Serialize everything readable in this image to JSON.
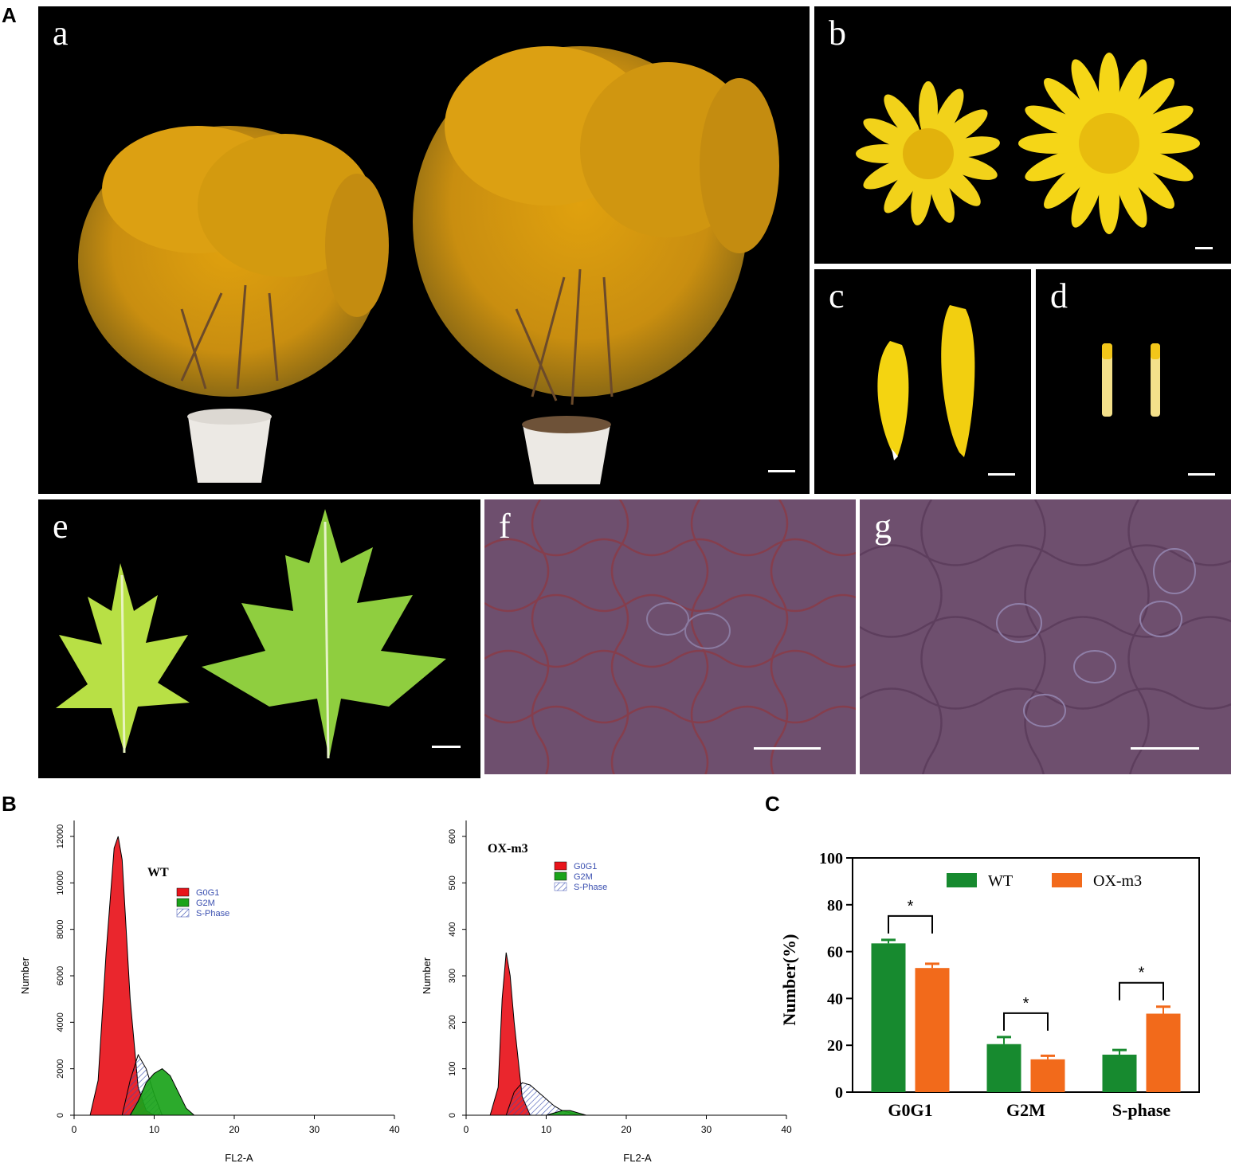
{
  "panel_letters": {
    "A": "A",
    "B": "B",
    "C": "C"
  },
  "photos": {
    "a": {
      "label": "a"
    },
    "b": {
      "label": "b"
    },
    "c": {
      "label": "c"
    },
    "d": {
      "label": "d"
    },
    "e": {
      "label": "e"
    },
    "f": {
      "label": "f"
    },
    "g": {
      "label": "g"
    }
  },
  "flow_wt": {
    "name": "WT",
    "ylabel": "Number",
    "xlabel": "FL2-A",
    "yticks": [
      0,
      2000,
      4000,
      6000,
      8000,
      10000,
      12000
    ],
    "xticks": [
      0,
      10,
      20,
      30,
      40
    ],
    "legend": [
      "G0G1",
      "G2M",
      "S-Phase"
    ]
  },
  "flow_ox": {
    "name": "OX-m3",
    "ylabel": "Number",
    "xlabel": "FL2-A",
    "yticks": [
      0,
      100,
      200,
      300,
      400,
      500,
      600
    ],
    "xticks": [
      0,
      10,
      20,
      30,
      40
    ],
    "legend": [
      "G0G1",
      "G2M",
      "S-Phase"
    ]
  },
  "colors": {
    "g0g1": "#e8141b",
    "g2m": "#1aa31a",
    "sphase": "#3a4fb0",
    "wt_bar": "#178a2f",
    "ox_bar": "#f26a1b"
  },
  "chart_data": [
    {
      "type": "area",
      "series": [
        {
          "name": "G0G1",
          "x": [
            2,
            3,
            4,
            5,
            5.5,
            6,
            7,
            8,
            9,
            10
          ],
          "y": [
            0,
            1500,
            7000,
            11500,
            12000,
            11000,
            5000,
            1200,
            200,
            0
          ]
        },
        {
          "name": "S-Phase",
          "x": [
            6,
            7,
            8,
            9,
            10,
            11
          ],
          "y": [
            0,
            1500,
            2600,
            2000,
            900,
            0
          ]
        },
        {
          "name": "G2M",
          "x": [
            7,
            8,
            9,
            10,
            11,
            12,
            13,
            14,
            15
          ],
          "y": [
            0,
            600,
            1400,
            1800,
            2000,
            1700,
            1000,
            300,
            0
          ]
        }
      ],
      "xlim": [
        0,
        40
      ],
      "ylim": [
        0,
        12000
      ]
    },
    {
      "type": "area",
      "series": [
        {
          "name": "G0G1",
          "x": [
            3,
            4,
            4.5,
            5,
            5.5,
            6,
            7,
            8
          ],
          "y": [
            0,
            60,
            250,
            350,
            300,
            200,
            40,
            0
          ]
        },
        {
          "name": "S-Phase",
          "x": [
            5,
            6,
            7,
            8,
            9,
            10,
            11,
            12,
            14
          ],
          "y": [
            0,
            50,
            70,
            65,
            50,
            35,
            20,
            10,
            0
          ]
        },
        {
          "name": "G2M",
          "x": [
            10,
            11,
            12,
            13,
            14,
            15
          ],
          "y": [
            0,
            5,
            10,
            10,
            5,
            0
          ]
        }
      ],
      "xlim": [
        0,
        40
      ],
      "ylim": [
        0,
        600
      ]
    },
    {
      "type": "bar",
      "ylabel": "Number(%)",
      "categories": [
        "G0G1",
        "G2M",
        "S-phase"
      ],
      "series": [
        {
          "name": "WT",
          "values": [
            63.5,
            20.5,
            16
          ],
          "errors": [
            1.5,
            3,
            2
          ]
        },
        {
          "name": "OX-m3",
          "values": [
            53,
            14,
            33.5
          ],
          "errors": [
            1.8,
            1.5,
            3
          ]
        }
      ],
      "yticks": [
        0,
        20,
        40,
        60,
        80,
        100
      ],
      "ylim": [
        0,
        100
      ],
      "significance": [
        "*",
        "*",
        "*"
      ]
    }
  ]
}
